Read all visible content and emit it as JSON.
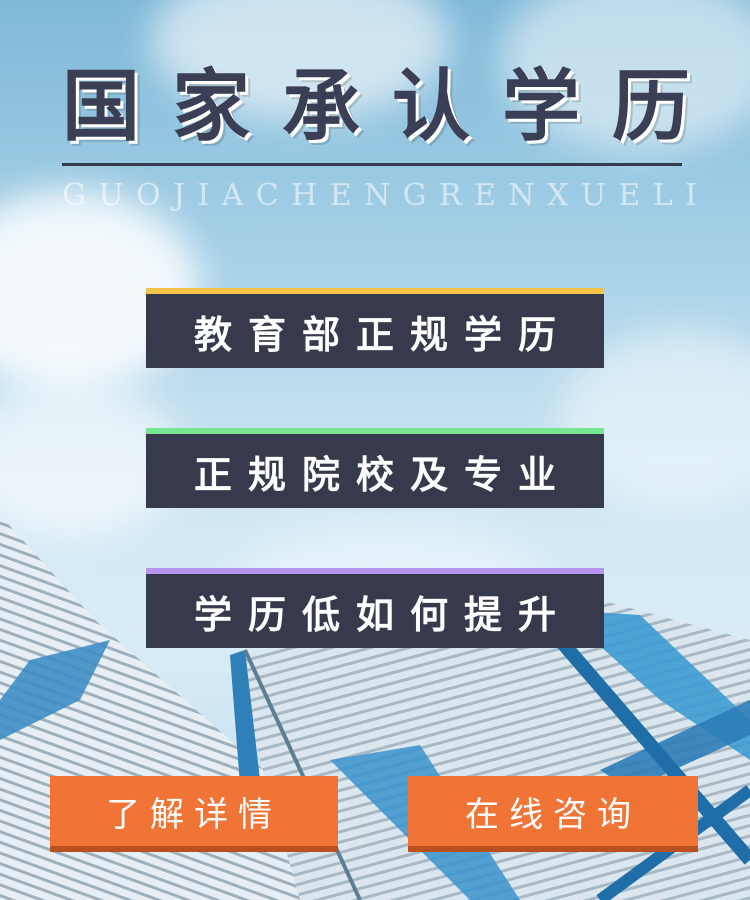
{
  "headline": {
    "title_chars": [
      "国",
      "家",
      "承",
      "认",
      "学",
      "历"
    ],
    "pinyin": "GUOJIACHENGRENXUELI"
  },
  "tags": [
    {
      "label": "教育部正规学历",
      "accent": "#f3c64a"
    },
    {
      "label": "正规院校及专业",
      "accent": "#76e690"
    },
    {
      "label": "学历低如何提升",
      "accent": "#b994ee"
    }
  ],
  "buttons": {
    "details_label": "了解详情",
    "consult_label": "在线咨询"
  },
  "colors": {
    "tag_bg": "#363a4c",
    "button_bg": "#f07435",
    "title": "#3a3f55"
  }
}
